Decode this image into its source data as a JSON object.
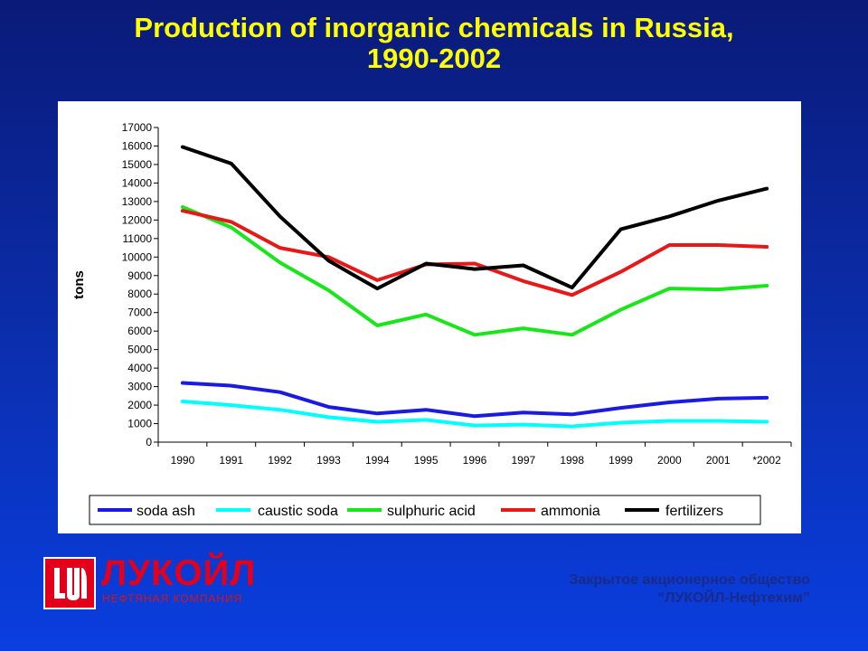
{
  "header": {
    "title_line1": "Production of inorganic chemicals in Russia,",
    "title_line2": "1990-2002"
  },
  "chart_data": {
    "type": "line",
    "title": "Production of inorganic chemicals in Russia, 1990-2002",
    "ylabel": "tons",
    "xlabel": "",
    "ylim": [
      0,
      17000
    ],
    "ytick_step": 1000,
    "categories": [
      "1990",
      "1991",
      "1992",
      "1993",
      "1994",
      "1995",
      "1996",
      "1997",
      "1998",
      "1999",
      "2000",
      "2001",
      "*2002"
    ],
    "grid": false,
    "legend_position": "bottom",
    "series": [
      {
        "name": "soda ash",
        "color": "#1a1ae0",
        "values": [
          3200,
          3050,
          2700,
          1900,
          1550,
          1750,
          1400,
          1600,
          1500,
          1850,
          2150,
          2350,
          2400
        ]
      },
      {
        "name": "caustic soda",
        "color": "#00ffff",
        "values": [
          2200,
          2000,
          1750,
          1350,
          1100,
          1200,
          900,
          950,
          850,
          1050,
          1150,
          1150,
          1100
        ]
      },
      {
        "name": "sulphuric acid",
        "color": "#19e619",
        "values": [
          12700,
          11600,
          9700,
          8200,
          6300,
          6900,
          5800,
          6150,
          5800,
          7150,
          8300,
          8250,
          8450
        ]
      },
      {
        "name": "ammonia",
        "color": "#e61919",
        "values": [
          12500,
          11900,
          10500,
          10000,
          8750,
          9600,
          9650,
          8700,
          7950,
          9200,
          10650,
          10650,
          10550
        ]
      },
      {
        "name": "fertilizers",
        "color": "#000000",
        "values": [
          15950,
          15050,
          12200,
          9800,
          8300,
          9650,
          9350,
          9550,
          8350,
          11500,
          12200,
          13050,
          13700
        ]
      }
    ]
  },
  "footer": {
    "logo_text": "ЛУКОЙЛ",
    "logo_sub": "НЕФТЯНАЯ КОМПАНИЯ",
    "company_line1": "Закрытое акционерное общество",
    "company_line2": "“ЛУКОЙЛ-Нефтехим”"
  }
}
